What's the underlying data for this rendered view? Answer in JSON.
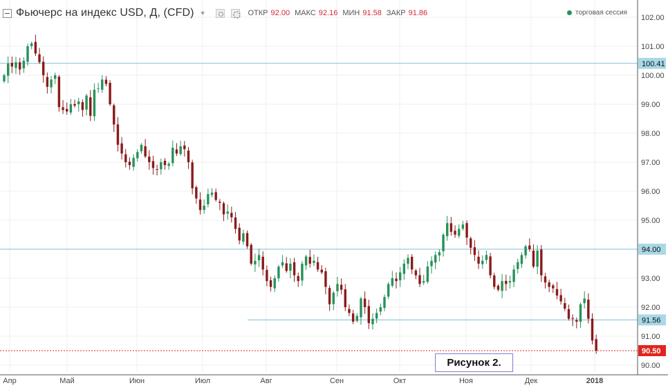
{
  "header": {
    "title": "Фьючерс на индекс USD, Д, (CFD)",
    "dropdown_icon": "caret-down-icon",
    "ohlc": [
      {
        "label": "ОТКР",
        "value": "92.00"
      },
      {
        "label": "МАКС",
        "value": "92.16"
      },
      {
        "label": "МИН",
        "value": "91.58"
      },
      {
        "label": "ЗАКР",
        "value": "91.86"
      }
    ],
    "session_label": "торговая сессия"
  },
  "figure_label": "Рисунок 2.",
  "colors": {
    "up": "#26925b",
    "down": "#8b1a1a",
    "level_line": "#7ac1d8",
    "level_badge": "#a9d8e6",
    "price_badge": "#e0261f",
    "grid": "#efefef",
    "session_dot": "#26925b"
  },
  "chart_data": {
    "type": "candlestick",
    "y_axis": {
      "min": 89.92,
      "max": 102.25,
      "ticks": [
        "102.00",
        "101.00",
        "100.00",
        "99.00",
        "98.00",
        "97.00",
        "96.00",
        "95.00",
        "94.00",
        "93.00",
        "92.00",
        "91.00",
        "90.00"
      ]
    },
    "x_axis": {
      "month_labels": [
        "Апр",
        "Май",
        "Июн",
        "Июл",
        "Авг",
        "Сен",
        "Окт",
        "Ноя",
        "Дек",
        "2018"
      ]
    },
    "level_lines": [
      {
        "value": 100.41,
        "label": "100.41"
      },
      {
        "value": 94.0,
        "label": "94.00"
      },
      {
        "value": 91.56,
        "label": "91.56"
      }
    ],
    "current_price": {
      "value": 90.5,
      "label": "90.50"
    },
    "closes": [
      100.0,
      100.4,
      100.3,
      100.45,
      100.2,
      100.5,
      101.0,
      101.1,
      100.75,
      100.45,
      100.0,
      99.6,
      99.85,
      100.0,
      98.9,
      98.8,
      98.75,
      99.0,
      98.95,
      99.1,
      98.8,
      99.3,
      98.6,
      99.5,
      99.55,
      99.85,
      99.7,
      99.0,
      98.3,
      97.6,
      97.3,
      97.0,
      96.9,
      97.15,
      97.35,
      97.6,
      97.2,
      97.0,
      96.8,
      96.75,
      97.0,
      96.9,
      96.95,
      97.5,
      97.3,
      97.55,
      97.45,
      97.0,
      96.1,
      95.75,
      95.35,
      95.5,
      95.9,
      95.95,
      95.7,
      95.6,
      95.2,
      95.3,
      95.1,
      94.7,
      94.3,
      94.55,
      94.1,
      93.5,
      93.6,
      93.8,
      93.3,
      92.9,
      92.7,
      93.0,
      93.4,
      93.55,
      93.25,
      93.5,
      93.1,
      92.9,
      93.5,
      93.75,
      93.5,
      93.6,
      93.3,
      93.2,
      92.7,
      92.1,
      92.5,
      92.8,
      92.6,
      92.0,
      91.8,
      91.5,
      91.7,
      92.3,
      92.0,
      91.45,
      91.6,
      91.8,
      92.0,
      92.35,
      92.8,
      93.0,
      92.9,
      93.2,
      93.5,
      93.7,
      93.3,
      93.1,
      92.8,
      92.9,
      93.4,
      93.6,
      93.8,
      93.9,
      94.5,
      94.9,
      94.6,
      94.5,
      94.7,
      94.85,
      94.4,
      94.05,
      93.8,
      93.5,
      93.6,
      93.8,
      93.1,
      92.7,
      92.6,
      92.9,
      92.8,
      92.9,
      93.3,
      93.55,
      93.8,
      94.1,
      94.0,
      93.4,
      93.95,
      93.1,
      92.85,
      92.7,
      92.65,
      92.4,
      92.2,
      91.95,
      91.6,
      91.6,
      91.5,
      92.1,
      92.3,
      91.6,
      90.85,
      90.5
    ]
  }
}
